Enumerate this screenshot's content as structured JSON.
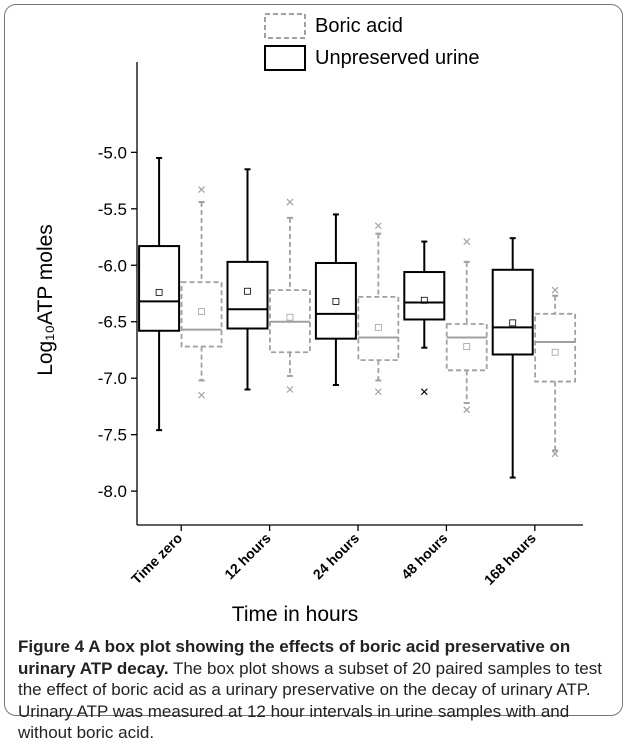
{
  "chart_data": {
    "type": "box",
    "x_label": "Time in hours",
    "y_label": "Log₁₀ATP moles",
    "categories": [
      "Time zero",
      "12 hours",
      "24 hours",
      "48 hours",
      "168 hours"
    ],
    "ylim": [
      -8.3,
      -4.2
    ],
    "yticks": [
      {
        "value": -5,
        "label": "-5.0"
      },
      -5.5,
      {
        "value": -6,
        "label": "-6.0"
      },
      -6.5,
      {
        "value": -7,
        "label": "-7.0"
      },
      -7.5,
      {
        "value": -8,
        "label": "-8.0"
      }
    ],
    "legend_position": "top",
    "series": [
      {
        "name": "Boric acid",
        "color": "#a0a0a0",
        "dashed": true,
        "min": [
          -7.02,
          -6.98,
          -7.02,
          -7.22,
          -7.64
        ],
        "q1": [
          -6.72,
          -6.77,
          -6.84,
          -6.93,
          -7.03
        ],
        "median": [
          -6.57,
          -6.5,
          -6.64,
          -6.64,
          -6.68
        ],
        "q3": [
          -6.15,
          -6.22,
          -6.28,
          -6.52,
          -6.43
        ],
        "max": [
          -5.44,
          -5.58,
          -5.72,
          -5.97,
          -6.27
        ],
        "mean": [
          -6.41,
          -6.46,
          -6.55,
          -6.72,
          -6.77
        ],
        "outliers": [
          [
            -5.33,
            -7.15
          ],
          [
            -5.44,
            -7.1
          ],
          [
            -5.65,
            -7.12
          ],
          [
            -5.79,
            -7.28
          ],
          [
            -6.22,
            -7.67
          ]
        ]
      },
      {
        "name": "Unpreserved urine",
        "color": "#000000",
        "dashed": false,
        "min": [
          -7.46,
          -7.1,
          -7.06,
          -6.73,
          -7.88
        ],
        "q1": [
          -6.58,
          -6.56,
          -6.65,
          -6.48,
          -6.79
        ],
        "median": [
          -6.32,
          -6.39,
          -6.43,
          -6.33,
          -6.55
        ],
        "q3": [
          -5.83,
          -5.97,
          -5.98,
          -6.06,
          -6.04
        ],
        "max": [
          -5.05,
          -5.15,
          -5.55,
          -5.79,
          -5.76
        ],
        "mean": [
          -6.24,
          -6.23,
          -6.32,
          -6.31,
          -6.51
        ],
        "outliers": [
          [],
          [],
          [],
          [
            -7.12
          ],
          []
        ]
      }
    ]
  },
  "caption": {
    "title": "Figure 4 A box plot showing the effects of boric acid preservative on urinary ATP decay.",
    "text": "The box plot shows a subset of 20 paired samples to test the effect of boric acid as a urinary preservative on the decay of urinary ATP. Urinary ATP was measured at 12 hour intervals in urine samples with and without boric acid."
  }
}
